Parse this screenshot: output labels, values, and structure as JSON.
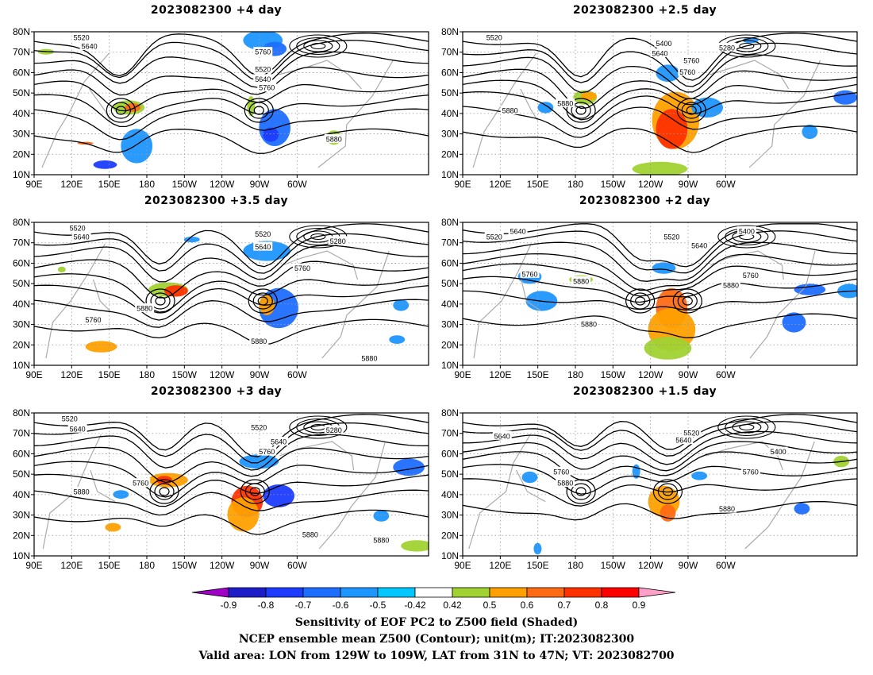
{
  "panels": [
    {
      "title": "2023082300  +4 day"
    },
    {
      "title": "2023082300  +2.5 day"
    },
    {
      "title": "2023082300  +3.5 day"
    },
    {
      "title": "2023082300  +2 day"
    },
    {
      "title": "2023082300  +3 day"
    },
    {
      "title": "2023082300  +1.5 day"
    }
  ],
  "axes": {
    "lon_labels": [
      "90E",
      "120E",
      "150E",
      "180",
      "150W",
      "120W",
      "90W",
      "60W"
    ],
    "lat_labels": [
      "80N",
      "70N",
      "60N",
      "50N",
      "40N",
      "30N",
      "20N",
      "10N"
    ]
  },
  "colorbar": {
    "ticks": [
      "-0.9",
      "-0.8",
      "-0.7",
      "-0.6",
      "-0.5",
      "-0.42",
      "0.42",
      "0.5",
      "0.6",
      "0.7",
      "0.8",
      "0.9"
    ],
    "colors": [
      "#a000c8",
      "#1e1ec8",
      "#1e3cff",
      "#1e6eff",
      "#1e96ff",
      "#00c8ff",
      "#ffffff",
      "#a0d232",
      "#ffa000",
      "#ff6a14",
      "#ff3200",
      "#ff0000",
      "#ffa0c8"
    ]
  },
  "caption": {
    "line1": "Sensitivity of EOF PC2 to Z500 field (Shaded)",
    "line2": "NCEP ensemble mean Z500 (Contour); unit(m); IT:2023082300",
    "line3": "Valid area: LON from 129W to 109W, LAT from 31N to 47N; VT: 2023082700"
  },
  "contour_labels": {
    "p0": [
      "5520",
      "5640",
      "5760",
      "5520",
      "5640",
      "5760",
      "5880"
    ],
    "p1": [
      "5400",
      "5280",
      "5520",
      "5640",
      "5760",
      "5760",
      "5880",
      "5880"
    ],
    "p2": [
      "5520",
      "5640",
      "5520",
      "5640",
      "5280",
      "5760",
      "5760",
      "5880",
      "5880",
      "5880"
    ],
    "p3": [
      "5520",
      "5640",
      "5520",
      "5640",
      "5400",
      "5760",
      "5880",
      "5760",
      "5880",
      "5880"
    ],
    "p4": [
      "5520",
      "5640",
      "5520",
      "5640",
      "5280",
      "5760",
      "5880",
      "5760",
      "5880",
      "5880"
    ],
    "p5": [
      "5640",
      "5520",
      "5640",
      "5400",
      "5760",
      "5880",
      "5760",
      "5880"
    ]
  }
}
